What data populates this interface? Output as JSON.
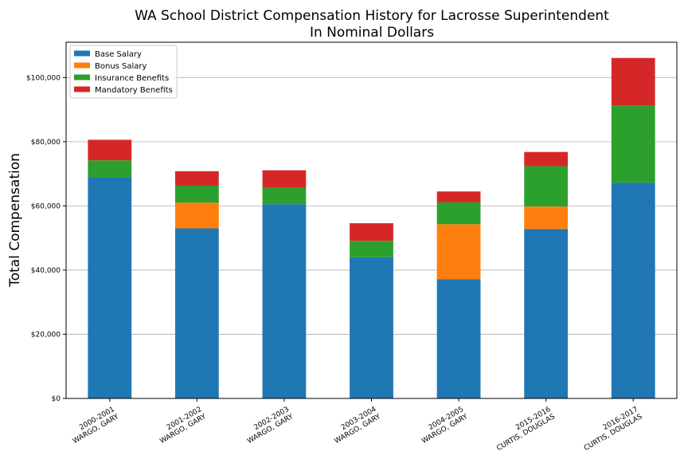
{
  "chart_data": {
    "type": "bar",
    "stacked": true,
    "title": "WA School District Compensation History for Lacrosse Superintendent",
    "subtitle": "In Nominal Dollars",
    "xlabel": "",
    "ylabel": "Total Compensation",
    "ylim": [
      0,
      111000
    ],
    "yticks": [
      0,
      20000,
      40000,
      60000,
      80000,
      100000
    ],
    "ytick_labels": [
      "$0",
      "$20,000",
      "$40,000",
      "$60,000",
      "$80,000",
      "$100,000"
    ],
    "grid": true,
    "legend_position": "top-left",
    "categories": [
      [
        "2000-2001",
        "WARGO, GARY"
      ],
      [
        "2001-2002",
        "WARGO, GARY"
      ],
      [
        "2002-2003",
        "WARGO, GARY"
      ],
      [
        "2003-2004",
        "WARGO, GARY"
      ],
      [
        "2004-2005",
        "WARGO, GARY"
      ],
      [
        "2015-2016",
        "CURTIS, DOUGLAS"
      ],
      [
        "2016-2017",
        "CURTIS, DOUGLAS"
      ]
    ],
    "series": [
      {
        "name": "Base Salary",
        "color": "#1f77b4",
        "values": [
          69000,
          53000,
          60500,
          44000,
          37200,
          52800,
          67200
        ]
      },
      {
        "name": "Bonus Salary",
        "color": "#ff7f0e",
        "values": [
          0,
          8000,
          0,
          0,
          17100,
          7000,
          0
        ]
      },
      {
        "name": "Insurance Benefits",
        "color": "#2ca02c",
        "values": [
          5200,
          5300,
          5100,
          5100,
          6800,
          12600,
          24000
        ]
      },
      {
        "name": "Mandatory Benefits",
        "color": "#d62728",
        "values": [
          6400,
          4500,
          5500,
          5500,
          3400,
          4400,
          14900
        ]
      }
    ]
  }
}
